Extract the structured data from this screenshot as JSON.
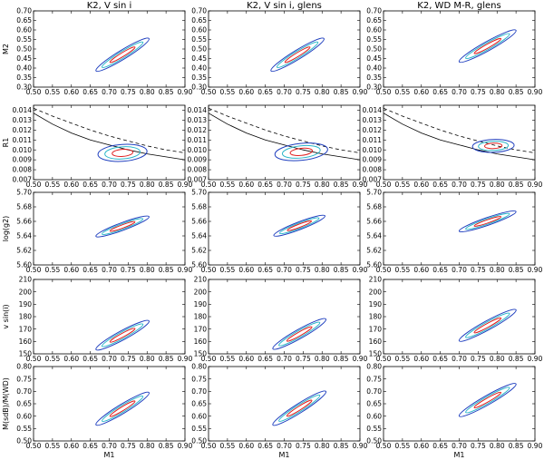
{
  "chart_data": {
    "type": "contour",
    "layout": {
      "rows": 5,
      "cols": 3
    },
    "column_titles": [
      "K2, V sin i",
      "K2, V sin i, glens",
      "K2, WD M-R, glens"
    ],
    "xlabel": "M1",
    "x_ticks": [
      "0.50",
      "0.55",
      "0.60",
      "0.65",
      "0.70",
      "0.75",
      "0.80",
      "0.85",
      "0.90"
    ],
    "xlim": [
      0.5,
      0.9
    ],
    "contour_colors": {
      "outer": "#1f3fbf",
      "middle": "#29b6c9",
      "inner": "#e02020"
    },
    "rows": [
      {
        "ylabel": "M2",
        "ylim": [
          0.3,
          0.7
        ],
        "y_ticks": [
          "0.30",
          "0.35",
          "0.40",
          "0.45",
          "0.50",
          "0.55",
          "0.60",
          "0.65",
          "0.70"
        ],
        "panels": [
          {
            "center": [
              0.735,
              0.47
            ],
            "end_a": [
              0.665,
              0.385
            ],
            "end_b": [
              0.805,
              0.555
            ],
            "width": 0.012
          },
          {
            "center": [
              0.735,
              0.47
            ],
            "end_a": [
              0.665,
              0.385
            ],
            "end_b": [
              0.805,
              0.555
            ],
            "width": 0.012
          },
          {
            "center": [
              0.775,
              0.515
            ],
            "end_a": [
              0.7,
              0.435
            ],
            "end_b": [
              0.85,
              0.6
            ],
            "width": 0.012
          }
        ]
      },
      {
        "ylabel": "R1",
        "ylim": [
          0.007,
          0.0145
        ],
        "y_ticks": [
          "0.007",
          "0.008",
          "0.009",
          "0.010",
          "0.011",
          "0.012",
          "0.013",
          "0.014"
        ],
        "solid_curve": [
          [
            0.5,
            0.0137
          ],
          [
            0.55,
            0.0126
          ],
          [
            0.6,
            0.0117
          ],
          [
            0.65,
            0.011
          ],
          [
            0.7,
            0.0105
          ],
          [
            0.75,
            0.01
          ],
          [
            0.8,
            0.0096
          ],
          [
            0.85,
            0.0093
          ],
          [
            0.9,
            0.009
          ]
        ],
        "dashed_curve": [
          [
            0.5,
            0.0142
          ],
          [
            0.55,
            0.0134
          ],
          [
            0.6,
            0.0127
          ],
          [
            0.65,
            0.012
          ],
          [
            0.7,
            0.0114
          ],
          [
            0.75,
            0.0109
          ],
          [
            0.8,
            0.0104
          ],
          [
            0.85,
            0.01
          ],
          [
            0.9,
            0.0097
          ]
        ],
        "panels": [
          {
            "center": [
              0.735,
              0.0097
            ],
            "rx": 0.065,
            "ry": 0.00085,
            "tilt": 0.1
          },
          {
            "center": [
              0.745,
              0.0098
            ],
            "rx": 0.07,
            "ry": 0.00085,
            "tilt": 0.15
          },
          {
            "center": [
              0.79,
              0.0104
            ],
            "rx": 0.055,
            "ry": 0.00065,
            "tilt": 0.05
          }
        ]
      },
      {
        "ylabel": "log(g2)",
        "ylim": [
          5.6,
          5.7
        ],
        "y_ticks": [
          "5.60",
          "5.62",
          "5.64",
          "5.66",
          "5.68",
          "5.70"
        ],
        "panels": [
          {
            "center": [
              0.735,
              5.653
            ],
            "end_a": [
              0.665,
              5.64
            ],
            "end_b": [
              0.805,
              5.667
            ],
            "width": 0.01
          },
          {
            "center": [
              0.74,
              5.654
            ],
            "end_a": [
              0.67,
              5.64
            ],
            "end_b": [
              0.805,
              5.667
            ],
            "width": 0.01
          },
          {
            "center": [
              0.775,
              5.66
            ],
            "end_a": [
              0.7,
              5.646
            ],
            "end_b": [
              0.85,
              5.673
            ],
            "width": 0.01
          }
        ]
      },
      {
        "ylabel": "v sin(i)",
        "ylim": [
          150,
          210
        ],
        "y_ticks": [
          "150",
          "160",
          "170",
          "180",
          "190",
          "200",
          "210"
        ],
        "panels": [
          {
            "center": [
              0.735,
              165
            ],
            "end_a": [
              0.665,
              154
            ],
            "end_b": [
              0.805,
              177
            ],
            "width": 0.012
          },
          {
            "center": [
              0.74,
              166
            ],
            "end_a": [
              0.67,
              154
            ],
            "end_b": [
              0.81,
              178
            ],
            "width": 0.012
          },
          {
            "center": [
              0.775,
              173
            ],
            "end_a": [
              0.7,
              161
            ],
            "end_b": [
              0.85,
              186
            ],
            "width": 0.012
          }
        ]
      },
      {
        "ylabel": "M(sdB)/M(WD)",
        "ylim": [
          0.5,
          0.8
        ],
        "y_ticks": [
          "0.50",
          "0.55",
          "0.60",
          "0.65",
          "0.70",
          "0.75",
          "0.80"
        ],
        "panels": [
          {
            "center": [
              0.735,
              0.63
            ],
            "end_a": [
              0.665,
              0.565
            ],
            "end_b": [
              0.805,
              0.695
            ],
            "width": 0.012
          },
          {
            "center": [
              0.74,
              0.632
            ],
            "end_a": [
              0.67,
              0.565
            ],
            "end_b": [
              0.81,
              0.7
            ],
            "width": 0.012
          },
          {
            "center": [
              0.775,
              0.665
            ],
            "end_a": [
              0.7,
              0.6
            ],
            "end_b": [
              0.85,
              0.73
            ],
            "width": 0.012
          }
        ]
      }
    ]
  }
}
